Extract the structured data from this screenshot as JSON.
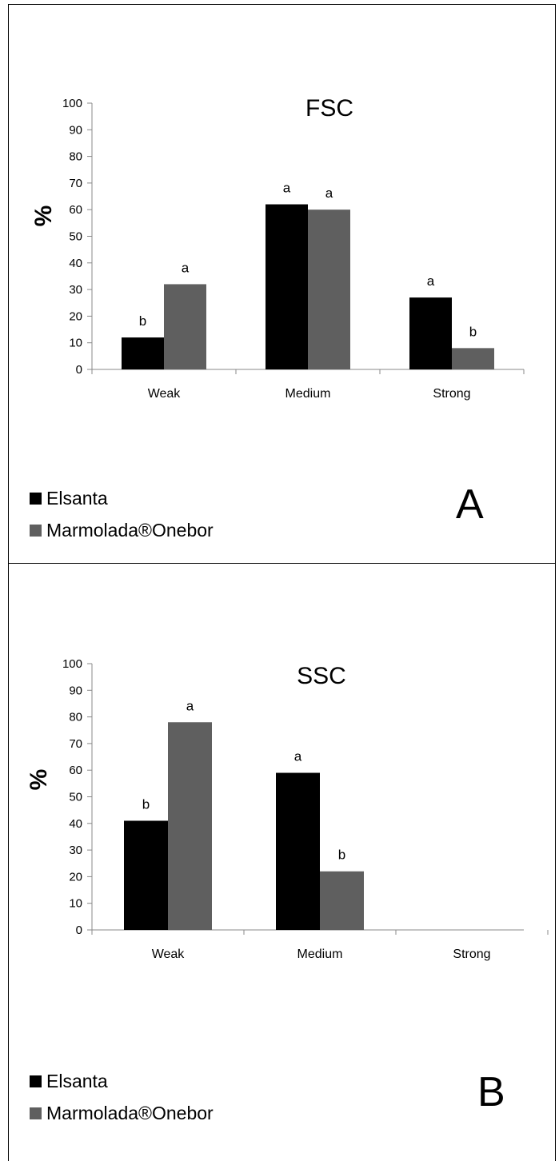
{
  "chart_data": [
    {
      "type": "bar",
      "title": "FSC",
      "panel_label": "A",
      "ylabel": "%",
      "ylim": [
        0,
        100
      ],
      "yticks": [
        0,
        10,
        20,
        30,
        40,
        50,
        60,
        70,
        80,
        90,
        100
      ],
      "categories": [
        "Weak",
        "Medium",
        "Strong"
      ],
      "series": [
        {
          "name": "Elsanta",
          "color": "#000000",
          "values": [
            12,
            62,
            27
          ],
          "letters": [
            "b",
            "a",
            "a"
          ]
        },
        {
          "name": "Marmolada®Onebor",
          "color": "#5f5f5f",
          "values": [
            32,
            60,
            8
          ],
          "letters": [
            "a",
            "a",
            "b"
          ]
        }
      ],
      "grid": false,
      "legend_position": "bottom-left"
    },
    {
      "type": "bar",
      "title": "SSC",
      "panel_label": "B",
      "ylabel": "%",
      "ylim": [
        0,
        100
      ],
      "yticks": [
        0,
        10,
        20,
        30,
        40,
        50,
        60,
        70,
        80,
        90,
        100
      ],
      "categories": [
        "Weak",
        "Medium",
        "Strong"
      ],
      "series": [
        {
          "name": "Elsanta",
          "color": "#000000",
          "values": [
            41,
            59,
            null
          ],
          "letters": [
            "b",
            "a",
            ""
          ]
        },
        {
          "name": "Marmolada®Onebor",
          "color": "#5f5f5f",
          "values": [
            78,
            22,
            null
          ],
          "letters": [
            "a",
            "b",
            ""
          ]
        }
      ],
      "grid": false,
      "legend_position": "bottom-left"
    }
  ]
}
